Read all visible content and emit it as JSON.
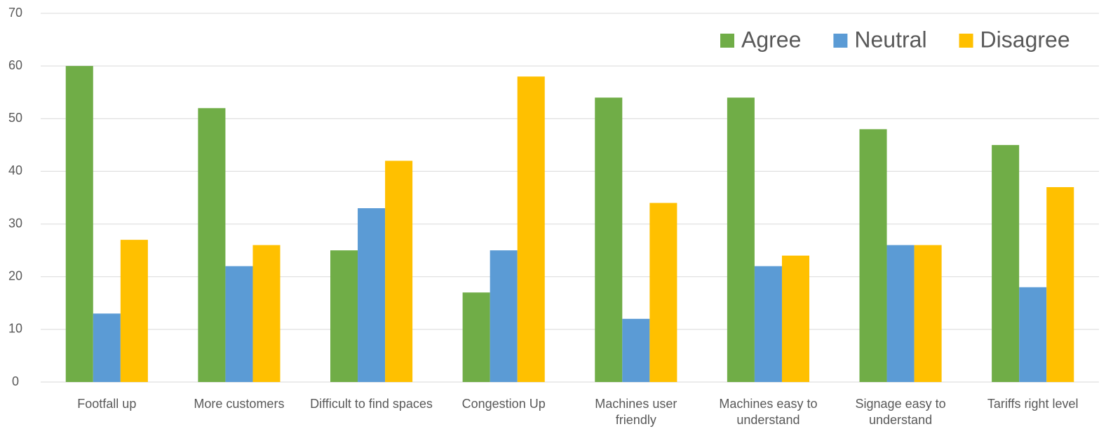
{
  "chart_data": {
    "type": "bar",
    "categories": [
      "Footfall up",
      "More customers",
      "Difficult to find spaces",
      "Congestion Up",
      "Machines user friendly",
      "Machines easy to understand",
      "Signage easy to understand",
      "Tariffs right level"
    ],
    "series": [
      {
        "name": "Agree",
        "color": "#70ad47",
        "values": [
          60,
          52,
          25,
          17,
          54,
          54,
          48,
          45
        ]
      },
      {
        "name": "Neutral",
        "color": "#5b9bd5",
        "values": [
          13,
          22,
          33,
          25,
          12,
          22,
          26,
          18
        ]
      },
      {
        "name": "Disagree",
        "color": "#ffc000",
        "values": [
          27,
          26,
          42,
          58,
          34,
          24,
          26,
          37
        ]
      }
    ],
    "ylim": [
      0,
      70
    ],
    "yticks": [
      0,
      10,
      20,
      30,
      40,
      50,
      60,
      70
    ],
    "grid": true,
    "legend": "top-right"
  }
}
